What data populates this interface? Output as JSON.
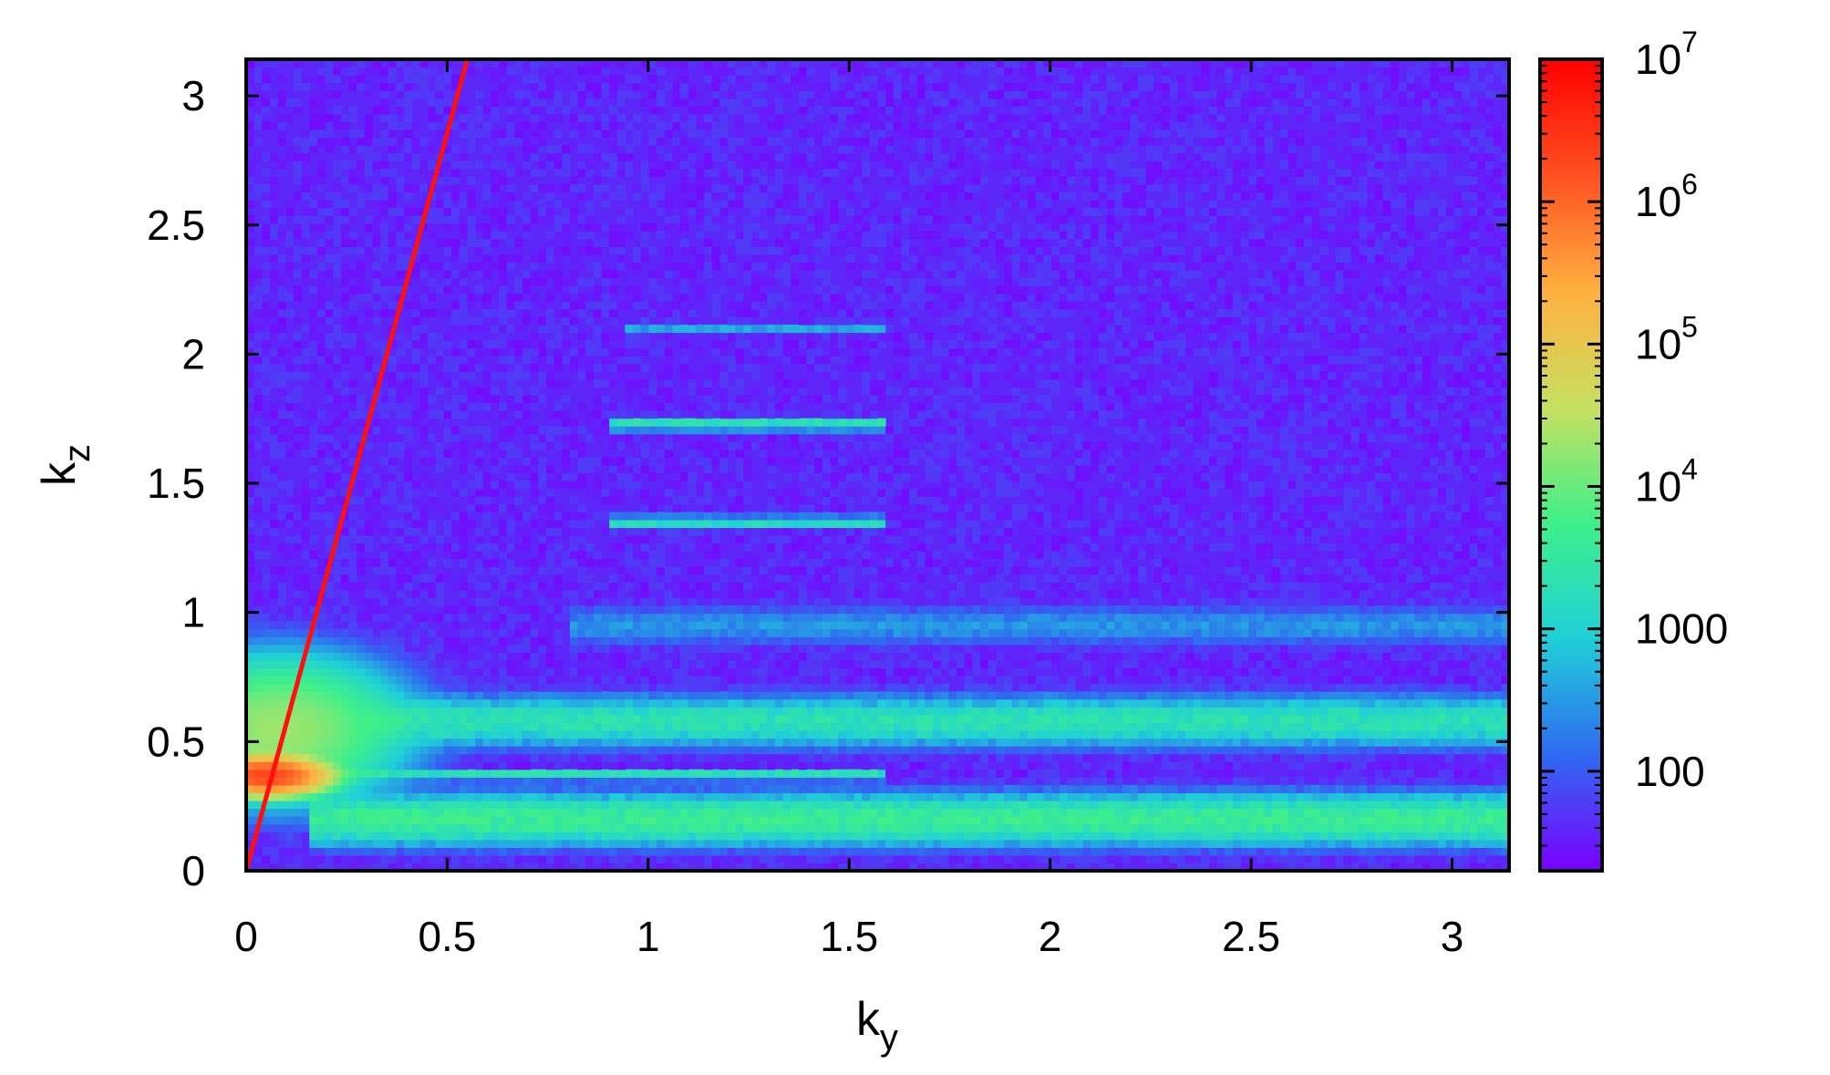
{
  "chart_data": {
    "type": "heatmap",
    "title": "",
    "xlabel": "k",
    "xlabel_subscript": "y",
    "ylabel": "k",
    "ylabel_subscript": "z",
    "xlim": [
      0,
      3.1416
    ],
    "ylim": [
      0,
      3.1416
    ],
    "x_ticks": [
      0,
      0.5,
      1,
      1.5,
      2,
      2.5,
      3
    ],
    "x_tick_labels": [
      "0",
      "0.5",
      "1",
      "1.5",
      "2",
      "2.5",
      "3"
    ],
    "y_ticks": [
      0,
      0.5,
      1,
      1.5,
      2,
      2.5,
      3
    ],
    "y_tick_labels": [
      "0",
      "0.5",
      "1",
      "1.5",
      "2",
      "2.5",
      "3"
    ],
    "grid": false,
    "colorscale": {
      "scale": "log",
      "range": [
        20,
        10000000
      ],
      "colormap": "rainbow",
      "colors": [
        "#7a00ff",
        "#2f6af0",
        "#1fd0d8",
        "#3ef08a",
        "#c8e060",
        "#ffb040",
        "#ff5020",
        "#ff0000"
      ],
      "ticks": [
        100,
        1000,
        10000,
        100000,
        1000000,
        10000000
      ],
      "tick_labels": [
        {
          "base": "100",
          "exp": ""
        },
        {
          "base": "1000",
          "exp": ""
        },
        {
          "base": "10",
          "exp": "4"
        },
        {
          "base": "10",
          "exp": "5"
        },
        {
          "base": "10",
          "exp": "6"
        },
        {
          "base": "10",
          "exp": "7"
        }
      ]
    },
    "background_level": 40,
    "features": [
      {
        "kind": "horizontal_band",
        "ky_range": [
          0.15,
          3.1416
        ],
        "kz_center": 0.2,
        "kz_width": 0.06,
        "peak": 5000
      },
      {
        "kind": "horizontal_band",
        "ky_range": [
          0.3,
          3.1416
        ],
        "kz_center": 0.58,
        "kz_width": 0.06,
        "peak": 2500
      },
      {
        "kind": "horizontal_band",
        "ky_range": [
          0.8,
          3.1416
        ],
        "kz_center": 0.95,
        "kz_width": 0.05,
        "peak": 300
      },
      {
        "kind": "horizontal_line",
        "ky_range": [
          0,
          1.6
        ],
        "kz_center": 0.37,
        "kz_width": 0.012,
        "peak": 3000
      },
      {
        "kind": "horizontal_line",
        "ky_range": [
          0.9,
          1.6
        ],
        "kz_center": 1.35,
        "kz_width": 0.015,
        "peak": 2000
      },
      {
        "kind": "horizontal_line",
        "ky_range": [
          0.9,
          1.6
        ],
        "kz_center": 1.73,
        "kz_width": 0.015,
        "peak": 2500
      },
      {
        "kind": "horizontal_line",
        "ky_range": [
          0.95,
          1.6
        ],
        "kz_center": 2.1,
        "kz_width": 0.015,
        "peak": 400
      },
      {
        "kind": "blob",
        "ky_center": 0.05,
        "kz_center": 0.37,
        "ky_width": 0.08,
        "kz_width": 0.04,
        "peak": 2000000
      },
      {
        "kind": "blob",
        "ky_center": 0.08,
        "kz_center": 0.55,
        "ky_width": 0.18,
        "kz_width": 0.16,
        "peak": 20000
      }
    ],
    "series": [
      {
        "type": "line",
        "color": "#ff1010",
        "x": [
          0,
          0.55
        ],
        "y": [
          0,
          3.1416
        ]
      }
    ]
  }
}
